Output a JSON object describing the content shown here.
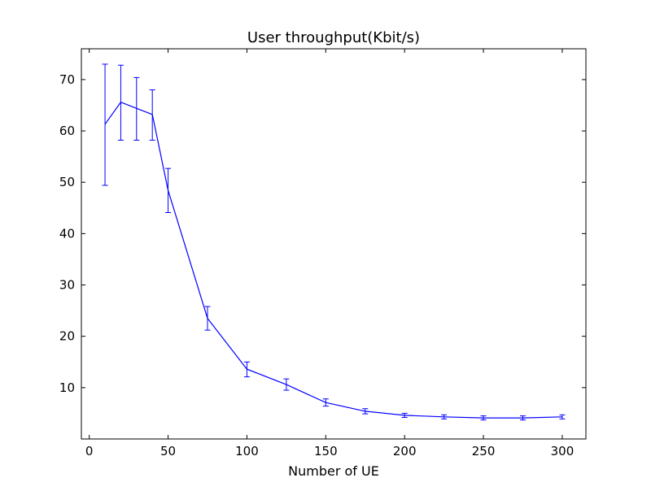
{
  "chart_data": {
    "type": "line",
    "title": "User throughput(Kbit/s)",
    "xlabel": "Number of UE",
    "ylabel": "",
    "xlim": [
      -5,
      315
    ],
    "ylim": [
      0,
      76
    ],
    "xticks": [
      0,
      50,
      100,
      150,
      200,
      250,
      300
    ],
    "yticks": [
      10,
      20,
      30,
      40,
      50,
      60,
      70
    ],
    "grid": false,
    "series": [
      {
        "color": "#0000ff",
        "x": [
          10,
          20,
          30,
          40,
          50,
          75,
          100,
          125,
          150,
          175,
          200,
          225,
          250,
          275,
          300
        ],
        "y": [
          61.3,
          65.6,
          64.4,
          63.2,
          48.4,
          23.5,
          13.6,
          10.6,
          7.1,
          5.4,
          4.6,
          4.3,
          4.1,
          4.1,
          4.3
        ],
        "err_low": [
          49.4,
          58.2,
          58.2,
          58.2,
          44.1,
          21.2,
          12.1,
          9.5,
          6.4,
          4.9,
          4.2,
          3.9,
          3.7,
          3.7,
          3.9
        ],
        "err_high": [
          73.0,
          72.8,
          70.4,
          68.0,
          52.7,
          25.8,
          15.0,
          11.7,
          7.8,
          5.9,
          5.0,
          4.7,
          4.5,
          4.5,
          4.7
        ]
      }
    ]
  }
}
